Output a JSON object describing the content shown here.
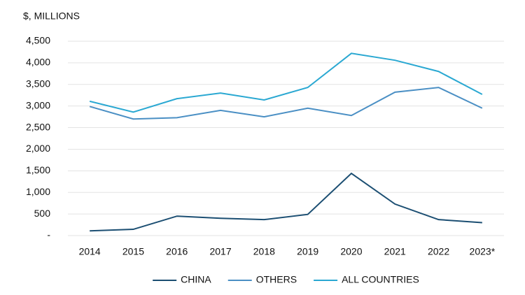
{
  "chart_data": {
    "type": "line",
    "y_label": "$, MILLIONS",
    "categories": [
      "2014",
      "2015",
      "2016",
      "2017",
      "2018",
      "2019",
      "2020",
      "2021",
      "2022",
      "2023*"
    ],
    "series": [
      {
        "name": "CHINA",
        "color": "#1b4e72",
        "values": [
          110,
          145,
          450,
          400,
          370,
          490,
          1440,
          730,
          370,
          300
        ]
      },
      {
        "name": "OTHERS",
        "color": "#4a8fc4",
        "values": [
          2990,
          2700,
          2730,
          2900,
          2750,
          2950,
          2780,
          3320,
          3430,
          2950
        ]
      },
      {
        "name": "ALL COUNTRIES",
        "color": "#2aa8d2",
        "values": [
          3110,
          2860,
          3170,
          3300,
          3140,
          3430,
          4220,
          4060,
          3800,
          3270
        ]
      }
    ],
    "ylim": [
      0,
      4500
    ],
    "yticks": [
      {
        "value": 0,
        "label": "-"
      },
      500,
      {
        "value": 1000,
        "label": "1,000"
      },
      {
        "value": 1500,
        "label": "1,500"
      },
      {
        "value": 2000,
        "label": "2,000"
      },
      {
        "value": 2500,
        "label": "2,500"
      },
      {
        "value": 3000,
        "label": "3,000"
      },
      {
        "value": 3500,
        "label": "3,500"
      },
      {
        "value": 4000,
        "label": "4,000"
      },
      {
        "value": 4500,
        "label": "4,500"
      }
    ],
    "grid": true,
    "legend": "bottom"
  }
}
